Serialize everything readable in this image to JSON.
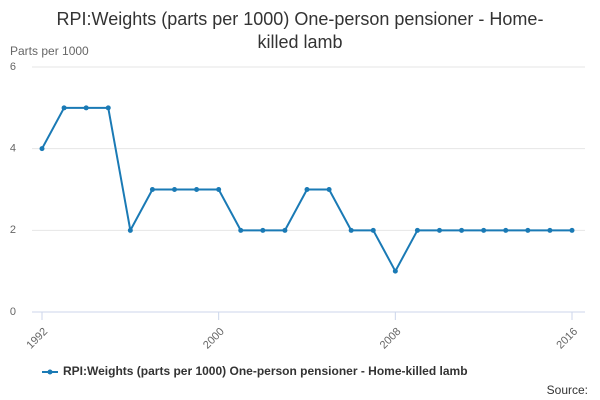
{
  "chart_data": {
    "type": "line",
    "title": "RPI:Weights (parts per 1000) One-person pensioner - Home-killed lamb",
    "y_axis_label": "Parts per 1000",
    "x": [
      1992,
      1993,
      1994,
      1995,
      1996,
      1997,
      1998,
      1999,
      2000,
      2001,
      2002,
      2003,
      2004,
      2005,
      2006,
      2007,
      2008,
      2009,
      2010,
      2011,
      2012,
      2013,
      2014,
      2015,
      2016
    ],
    "series": [
      {
        "name": "RPI:Weights (parts per 1000) One-person pensioner - Home-killed lamb",
        "color": "#1a7ab5",
        "values": [
          4,
          5,
          5,
          5,
          2,
          3,
          3,
          3,
          3,
          2,
          2,
          2,
          3,
          3,
          2,
          2,
          1,
          2,
          2,
          2,
          2,
          2,
          2,
          2,
          2
        ]
      }
    ],
    "xlim": [
      1992,
      2016
    ],
    "xticks": [
      1992,
      2000,
      2008,
      2016
    ],
    "ylim": [
      0,
      6
    ],
    "yticks": [
      0,
      2,
      4,
      6
    ],
    "grid": true,
    "source": "Source:"
  }
}
